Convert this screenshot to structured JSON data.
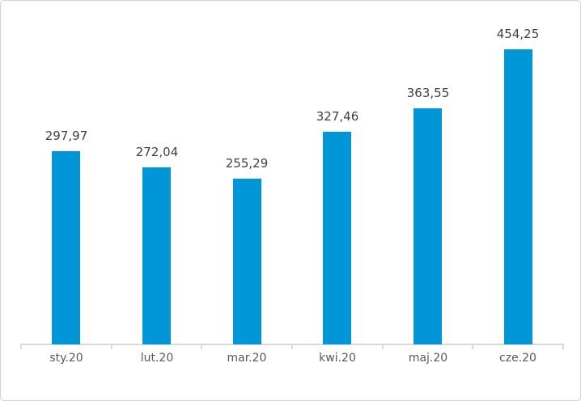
{
  "chart_data": {
    "type": "bar",
    "title": "",
    "xlabel": "",
    "ylabel": "",
    "categories": [
      "sty.20",
      "lut.20",
      "mar.20",
      "kwi.20",
      "maj.20",
      "cze.20"
    ],
    "values": [
      297.97,
      272.04,
      255.29,
      327.46,
      363.55,
      454.25
    ],
    "value_labels": [
      "297,97",
      "272,04",
      "255,29",
      "327,46",
      "363,55",
      "454,25"
    ],
    "series_count": 1,
    "ylim": [
      0,
      500
    ],
    "grid": false,
    "legend_position": "none",
    "data_label_position": "above-bar",
    "decimal_separator": ",",
    "colors": {
      "bar": "#0096d7",
      "axis": "#d9d9d9",
      "value_label": "#404040",
      "category_label": "#595959",
      "background": "#ffffff",
      "frame_border": "#d2d2d2"
    }
  }
}
